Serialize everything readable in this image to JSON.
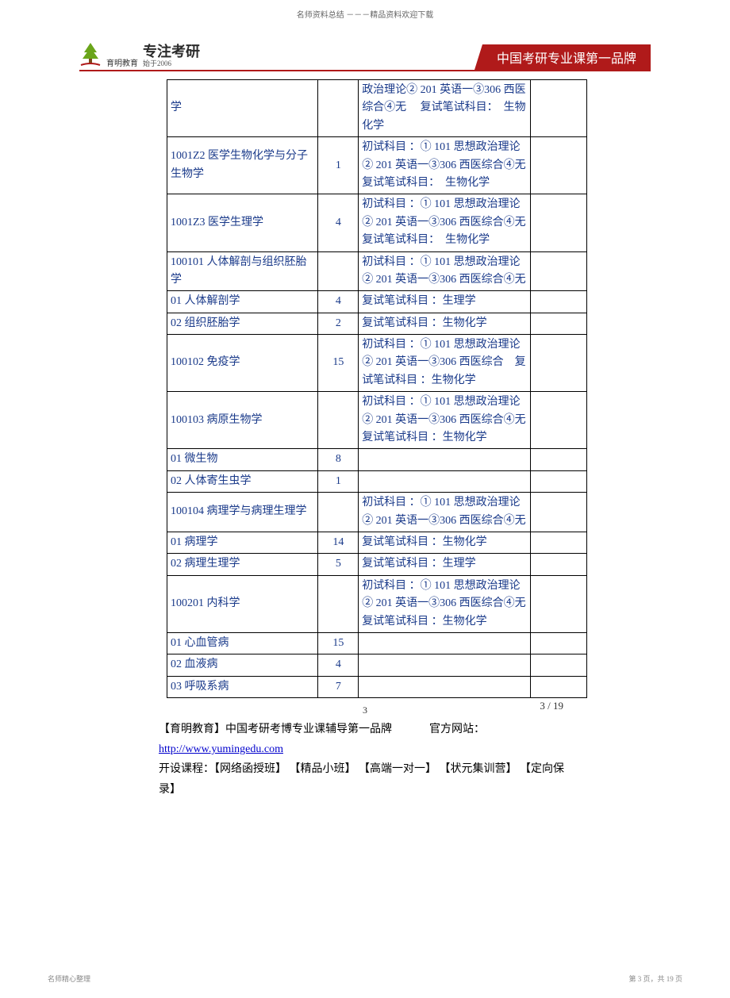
{
  "top_text": "名师资料总结 －－－精品资料欢迎下载",
  "logo": {
    "brand_small": "育明教育",
    "main": "专注考研",
    "sub": "始于2006"
  },
  "banner_text": "中国考研专业课第一品牌",
  "table": {
    "col_widths": {
      "c1": "175px",
      "c2": "40px",
      "c3": "200px",
      "c4": "60px"
    },
    "text_color": "#1a3a8a",
    "border_color": "#000000",
    "rows": [
      {
        "c1": "学",
        "c2": "",
        "c3": "政治理论② 201 英语一③306 西医综合④无　 复试笔试科目：　生物化学",
        "c4": ""
      },
      {
        "c1": "1001Z2 医学生物化学与分子生物学",
        "c2": "1",
        "c3": "初试科目 ：① 101 思想政治理论② 201 英语一③306 西医综合④无　 复试笔试科目：　生物化学",
        "c4": ""
      },
      {
        "c1": "1001Z3 医学生理学",
        "c2": "4",
        "c3": "初试科目 ：① 101 思想政治理论② 201 英语一③306 西医综合④无　 复试笔试科目：　生物化学",
        "c4": ""
      },
      {
        "c1": "100101 人体解剖与组织胚胎学",
        "c2": "",
        "c3": "初试科目 ：① 101 思想政治理论② 201 英语一③306 西医综合④无",
        "c4": ""
      },
      {
        "c1": "01 人体解剖学",
        "c2": "4",
        "c3": "复试笔试科目 ：生理学",
        "c4": ""
      },
      {
        "c1": "02 组织胚胎学",
        "c2": "2",
        "c3": "复试笔试科目 ：生物化学",
        "c4": ""
      },
      {
        "c1": "100102 免疫学",
        "c2": "15",
        "c3": "初试科目 ：① 101 思想政治理论② 201 英语一③306 西医综合　复试笔试科目 ：生物化学",
        "c4": ""
      },
      {
        "c1": "100103 病原生物学",
        "c2": "",
        "c3": "初试科目 ：① 101 思想政治理论② 201 英语一③306 西医综合④无　 复试笔试科目 ：生物化学",
        "c4": ""
      },
      {
        "c1": "01 微生物",
        "c2": "8",
        "c3": "",
        "c4": ""
      },
      {
        "c1": "02 人体寄生虫学",
        "c2": "1",
        "c3": "",
        "c4": ""
      },
      {
        "c1": "100104 病理学与病理生理学",
        "c2": "",
        "c3": "初试科目 ：① 101 思想政治理论② 201 英语一③306 西医综合④无",
        "c4": ""
      },
      {
        "c1": "01 病理学",
        "c2": "14",
        "c3": "复试笔试科目 ：生物化学",
        "c4": ""
      },
      {
        "c1": "02 病理生理学",
        "c2": "5",
        "c3": "复试笔试科目 ：生理学",
        "c4": ""
      },
      {
        "c1": "100201 内科学",
        "c2": "",
        "c3": "初试科目 ：① 101 思想政治理论② 201 英语一③306 西医综合④无　 复试笔试科目 ：生物化学",
        "c4": ""
      },
      {
        "c1": "01 心血管病",
        "c2": "15",
        "c3": "",
        "c4": ""
      },
      {
        "c1": "02 血液病",
        "c2": "4",
        "c3": "",
        "c4": ""
      },
      {
        "c1": "03 呼吸系病",
        "c2": "7",
        "c3": "",
        "c4": ""
      }
    ]
  },
  "page_inner": "3",
  "page_right": "3 / 19",
  "footer": {
    "line1_a": "【育明教育】中国考研考博专业课辅导第一品牌",
    "line1_b": "官方网站：",
    "url": "http://www.yumingedu.com",
    "line2": "开设课程：【网络函授班】 【精品小班】 【高端一对一】 【状元集训营】 【定向保录】"
  },
  "bottom_left": "名师精心整理",
  "bottom_right": "第 3 页，共 19 页",
  "colors": {
    "banner_bg": "#b01a1a",
    "link": "#0000cc"
  }
}
